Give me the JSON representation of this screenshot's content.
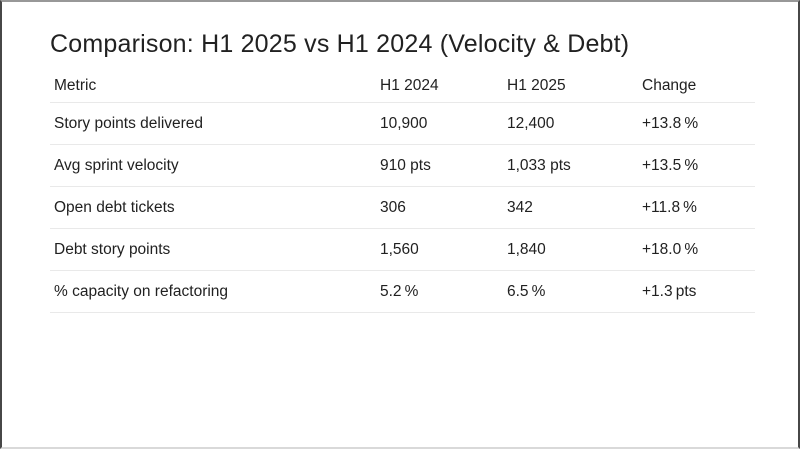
{
  "slide": {
    "title": "Comparison: H1 2025 vs H1 2024 (Velocity & Debt)"
  },
  "table": {
    "columns": [
      "Metric",
      "H1 2024",
      "H1 2025",
      "Change"
    ],
    "rows": [
      {
        "metric": "Story points delivered",
        "h1_2024": "10,900",
        "h1_2025": "12,400",
        "change": "+13.8 %"
      },
      {
        "metric": "Avg sprint velocity",
        "h1_2024": "910 pts",
        "h1_2025": "1,033 pts",
        "change": "+13.5 %"
      },
      {
        "metric": "Open debt tickets",
        "h1_2024": "306",
        "h1_2025": "342",
        "change": "+11.8 %"
      },
      {
        "metric": "Debt story points",
        "h1_2024": "1,560",
        "h1_2025": "1,840",
        "change": "+18.0 %"
      },
      {
        "metric": "% capacity on refactoring",
        "h1_2024": "5.2 %",
        "h1_2025": "6.5 %",
        "change": "+1.3 pts"
      }
    ]
  },
  "colors": {
    "bg": "#ffffff",
    "text": "#212121",
    "divider": "#e9e9e9",
    "frame-side": "#474747",
    "frame-top": "#989898",
    "frame-bottom": "#d9d9d9"
  }
}
